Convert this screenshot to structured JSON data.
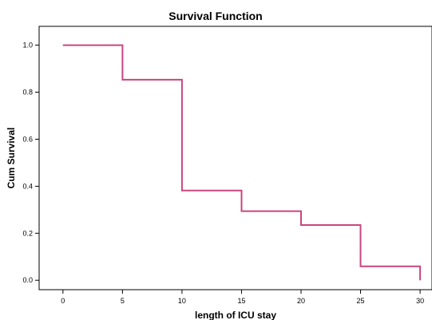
{
  "chart_data": {
    "type": "line",
    "step": true,
    "title": "Survival Function",
    "xlabel": "length of ICU stay",
    "ylabel": "Cum Survival",
    "xlim": [
      -2,
      31
    ],
    "ylim": [
      -0.04,
      1.08
    ],
    "x_ticks": [
      0,
      5,
      10,
      15,
      20,
      25,
      30
    ],
    "y_ticks": [
      0.0,
      0.2,
      0.4,
      0.6,
      0.8,
      1.0
    ],
    "x_tick_labels": [
      "0",
      "5",
      "10",
      "15",
      "20",
      "25",
      "30"
    ],
    "y_tick_labels": [
      "0.0",
      "0.2",
      "0.4",
      "0.6",
      "0.8",
      "1.0"
    ],
    "grid": false,
    "series": [
      {
        "color": "#c8467f",
        "points": [
          {
            "x": 0,
            "y": 1.0
          },
          {
            "x": 5,
            "y": 1.0
          },
          {
            "x": 5,
            "y": 0.853
          },
          {
            "x": 10,
            "y": 0.853
          },
          {
            "x": 10,
            "y": 0.382
          },
          {
            "x": 15,
            "y": 0.382
          },
          {
            "x": 15,
            "y": 0.294
          },
          {
            "x": 20,
            "y": 0.294
          },
          {
            "x": 20,
            "y": 0.235
          },
          {
            "x": 25,
            "y": 0.235
          },
          {
            "x": 25,
            "y": 0.059
          },
          {
            "x": 30,
            "y": 0.059
          },
          {
            "x": 30,
            "y": 0.0
          }
        ]
      }
    ]
  }
}
